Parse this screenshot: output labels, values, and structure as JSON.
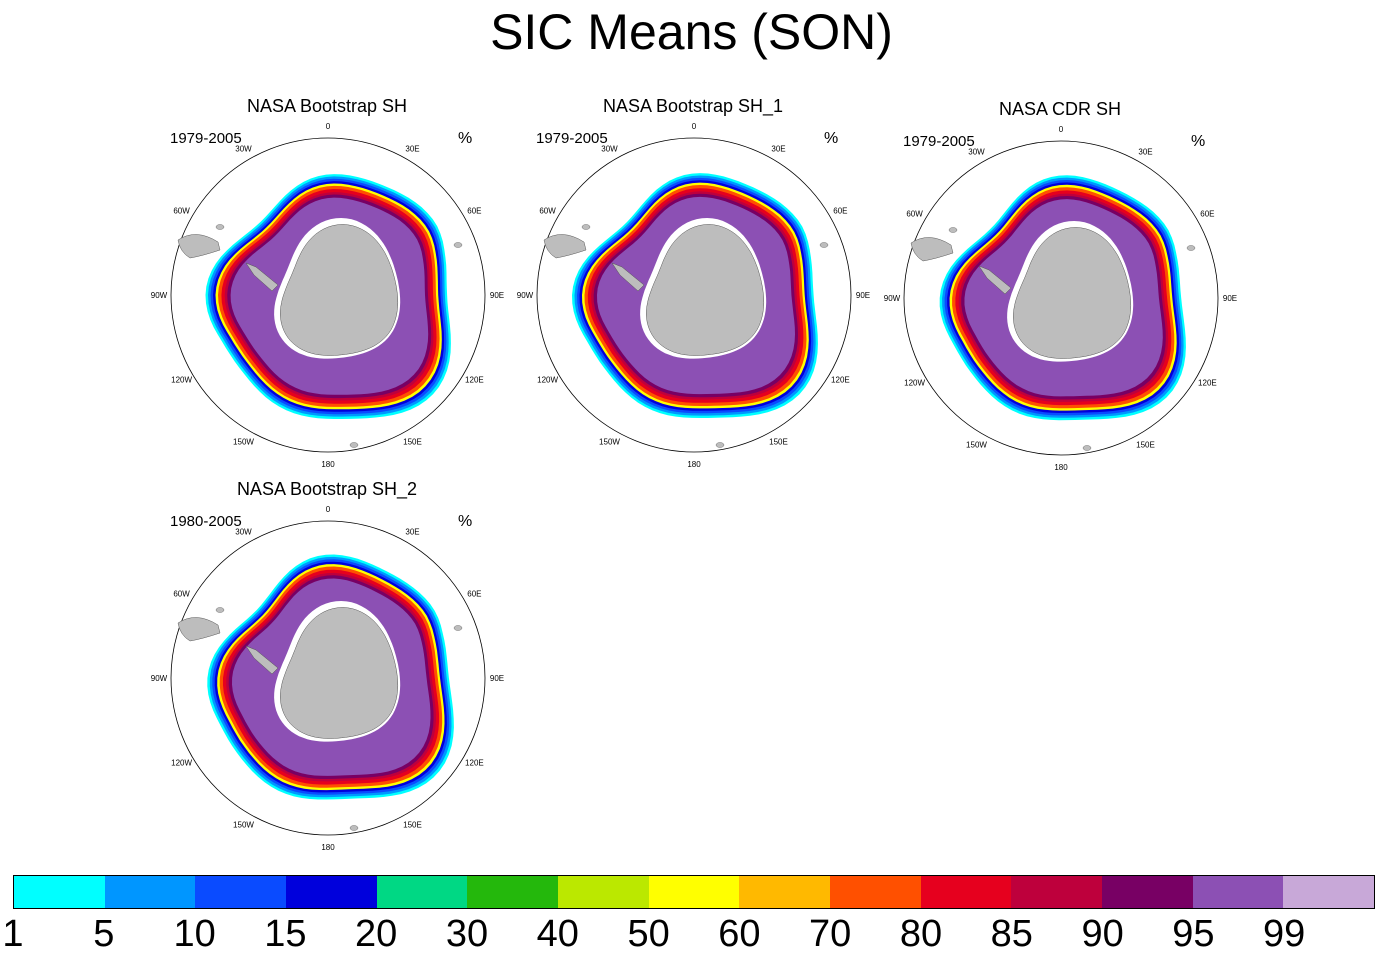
{
  "title": "SIC Means (SON)",
  "panels": [
    {
      "title": "NASA Bootstrap SH",
      "period": "1979-2005",
      "unit": "%",
      "variant": 0
    },
    {
      "title": "NASA Bootstrap SH_1",
      "period": "1979-2005",
      "unit": "%",
      "variant": 1
    },
    {
      "title": "NASA CDR SH",
      "period": "1979-2005",
      "unit": "%",
      "variant": 2
    },
    {
      "title": "NASA Bootstrap SH_2",
      "period": "1980-2005",
      "unit": "%",
      "variant": 3
    }
  ],
  "longitude_labels": [
    "0",
    "30E",
    "60E",
    "90E",
    "120E",
    "150E",
    "180",
    "150W",
    "120W",
    "90W",
    "60W",
    "30W"
  ],
  "colorbar": {
    "tick_labels": [
      "1",
      "5",
      "10",
      "15",
      "20",
      "30",
      "40",
      "50",
      "60",
      "70",
      "80",
      "85",
      "90",
      "95",
      "99"
    ],
    "colors": [
      "#00ffff",
      "#0096ff",
      "#0a4bff",
      "#0000dc",
      "#00d884",
      "#24b80c",
      "#bbe800",
      "#ffff00",
      "#ffb900",
      "#ff5000",
      "#e6001e",
      "#be003c",
      "#780064",
      "#8c50b4",
      "#c8a8d8"
    ]
  }
}
